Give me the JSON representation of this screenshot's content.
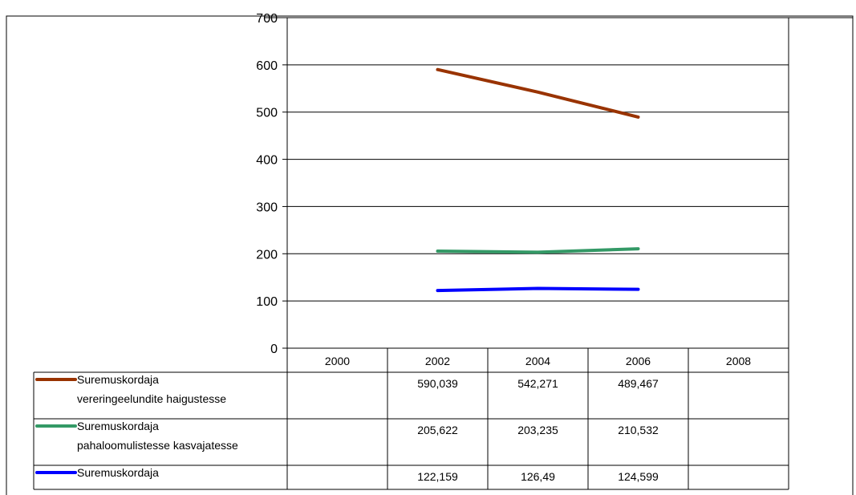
{
  "chart_data": {
    "type": "line",
    "categories": [
      "2000",
      "2002",
      "2004",
      "2006",
      "2008"
    ],
    "ylim": [
      0,
      700
    ],
    "yticks": [
      0,
      100,
      200,
      300,
      400,
      500,
      600,
      700
    ],
    "grid": true,
    "legend": "data-table",
    "series": [
      {
        "name_lines": [
          "Suremuskordaja",
          "vereringeelundite haigustesse"
        ],
        "color": "#993300",
        "values": [
          null,
          590.039,
          542.271,
          489.467,
          null
        ],
        "labels": [
          "",
          "590,039",
          "542,271",
          "489,467",
          ""
        ]
      },
      {
        "name_lines": [
          "Suremuskordaja",
          "pahaloomulistesse kasvajatesse"
        ],
        "color": "#339966",
        "values": [
          null,
          205.622,
          203.235,
          210.532,
          null
        ],
        "labels": [
          "",
          "205,622",
          "203,235",
          "210,532",
          ""
        ]
      },
      {
        "name_lines": [
          "Suremuskordaja"
        ],
        "color": "#0000ff",
        "values": [
          null,
          122.159,
          126.49,
          124.599,
          null
        ],
        "labels": [
          "",
          "122,159",
          "126,49",
          "124,599",
          ""
        ]
      }
    ]
  }
}
